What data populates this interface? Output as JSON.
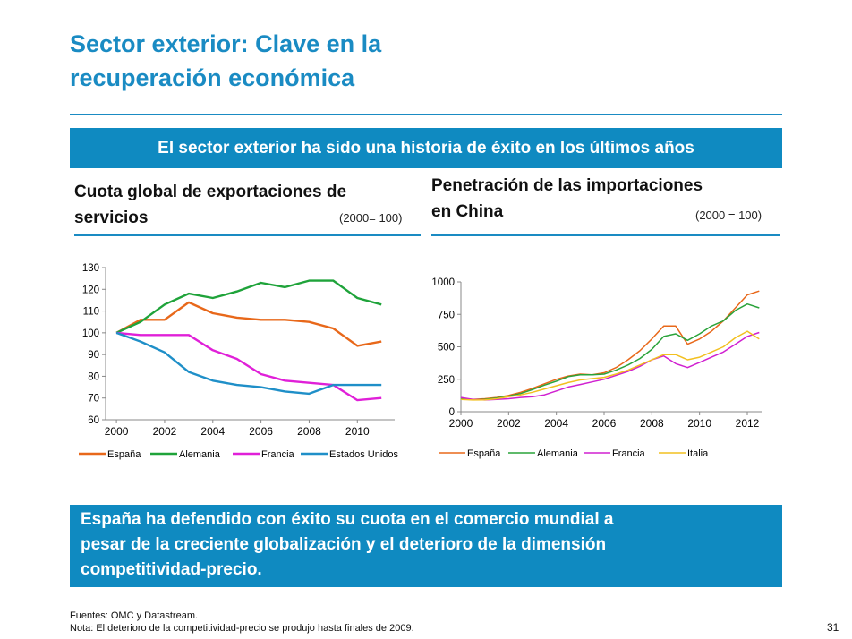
{
  "title": {
    "line1": "Sector exterior: Clave en la",
    "line2": "recuperación económica"
  },
  "banner": "El sector exterior ha sido una historia de éxito en los últimos años",
  "colors": {
    "accent": "#1a8bc3",
    "banner_bg": "#0f8ac1"
  },
  "left_header": {
    "line1": "Cuota global de exportaciones de",
    "line2": "servicios",
    "note": "(2000= 100)"
  },
  "right_header": {
    "line1": "Penetración de las importaciones",
    "line2": "en China",
    "note": "(2000 = 100)"
  },
  "callout": {
    "line1": "España ha defendido con éxito su cuota en el comercio mundial a",
    "line2": "pesar de la creciente globalización y el deterioro de la dimensión",
    "line3": "competitividad-precio."
  },
  "footer": {
    "sources": "Fuentes: OMC y Datastream.",
    "note": "Nota: El deterioro de la competitividad-precio se produjo hasta finales de 2009."
  },
  "page_number": "31",
  "chart_data": [
    {
      "type": "line",
      "x": [
        2000,
        2001,
        2002,
        2003,
        2004,
        2005,
        2006,
        2007,
        2008,
        2009,
        2010,
        2011
      ],
      "xticks": [
        "2000",
        "2002",
        "2004",
        "2006",
        "2008",
        "2010"
      ],
      "ylim": [
        60,
        130
      ],
      "yticks": [
        60,
        70,
        80,
        90,
        100,
        110,
        120,
        130
      ],
      "legend_position": "bottom",
      "grid": false,
      "series": [
        {
          "name": "España",
          "color": "#e8681a",
          "values": [
            100,
            106,
            106,
            114,
            109,
            107,
            106,
            106,
            105,
            102,
            94,
            96
          ]
        },
        {
          "name": "Alemania",
          "color": "#1fa33a",
          "values": [
            100,
            105,
            113,
            118,
            116,
            119,
            123,
            121,
            124,
            124,
            116,
            113
          ]
        },
        {
          "name": "Francia",
          "color": "#e020d8",
          "values": [
            100,
            99,
            99,
            99,
            92,
            88,
            81,
            78,
            77,
            76,
            69,
            70
          ]
        },
        {
          "name": "Estados Unidos",
          "color": "#1f8fc8",
          "values": [
            100,
            96,
            91,
            82,
            78,
            76,
            75,
            73,
            72,
            76,
            76,
            76
          ]
        }
      ]
    },
    {
      "type": "line",
      "x": [
        2000,
        2000.5,
        2001,
        2001.5,
        2002,
        2002.5,
        2003,
        2003.5,
        2004,
        2004.5,
        2005,
        2005.5,
        2006,
        2006.5,
        2007,
        2007.5,
        2008,
        2008.5,
        2009,
        2009.5,
        2010,
        2010.5,
        2011,
        2011.5,
        2012,
        2012.5
      ],
      "xticks": [
        "2000",
        "2002",
        "2004",
        "2006",
        "2008",
        "2010",
        "2012"
      ],
      "ylim": [
        0,
        1000
      ],
      "yticks": [
        0,
        250,
        500,
        750,
        1000
      ],
      "legend_position": "bottom",
      "grid": false,
      "series": [
        {
          "name": "España",
          "color": "#e8681a",
          "values": [
            100,
            95,
            100,
            110,
            125,
            150,
            180,
            215,
            250,
            275,
            290,
            285,
            300,
            340,
            400,
            470,
            560,
            660,
            660,
            520,
            560,
            620,
            700,
            800,
            900,
            930
          ]
        },
        {
          "name": "Alemania",
          "color": "#2aa33a",
          "values": [
            100,
            92,
            95,
            105,
            120,
            140,
            170,
            205,
            235,
            270,
            285,
            285,
            290,
            320,
            360,
            410,
            480,
            580,
            600,
            550,
            600,
            660,
            700,
            780,
            830,
            800
          ]
        },
        {
          "name": "Francia",
          "color": "#d020d0",
          "values": [
            110,
            95,
            90,
            95,
            100,
            110,
            115,
            130,
            160,
            190,
            210,
            230,
            250,
            280,
            310,
            350,
            400,
            430,
            370,
            340,
            380,
            420,
            460,
            520,
            580,
            610
          ]
        },
        {
          "name": "Italia",
          "color": "#f2c020",
          "values": [
            95,
            90,
            92,
            100,
            115,
            130,
            150,
            175,
            200,
            225,
            245,
            255,
            265,
            290,
            320,
            360,
            400,
            440,
            440,
            400,
            420,
            460,
            500,
            570,
            620,
            560
          ]
        }
      ]
    }
  ]
}
